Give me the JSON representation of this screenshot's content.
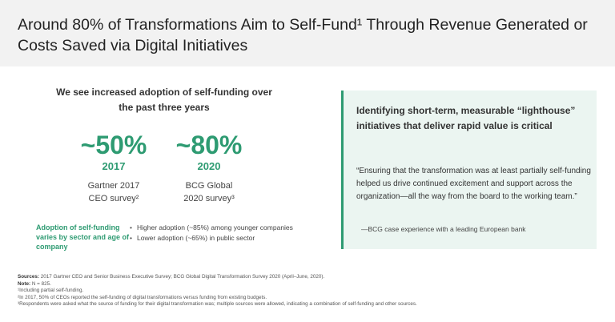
{
  "title": "Around 80% of Transformations Aim to Self-Fund¹ Through Revenue Generated or Costs Saved via Digital Initiatives",
  "left": {
    "subtitle": "We see increased adoption of self-funding over the past three years",
    "stats": [
      {
        "value": "~50%",
        "year": "2017",
        "source_line1": "Gartner 2017",
        "source_line2": "CEO survey²"
      },
      {
        "value": "~80%",
        "year": "2020",
        "source_line1": "BCG Global",
        "source_line2": "2020 survey³"
      }
    ],
    "adoption_label": "Adoption of self-funding varies by sector and age of company",
    "adoption_items": [
      "Higher adoption (~85%) among younger companies",
      "Lower adoption (~65%) in public sector"
    ]
  },
  "panel": {
    "heading": "Identifying short-term, measurable “lighthouse” initiatives that deliver rapid value is critical",
    "quote": "“Ensuring that the transformation was at least partially self-funding helped us drive continued excitement and support across the organization—all the way from the board to the working team.”",
    "attribution": "—BCG case experience with a leading European bank",
    "accent_color": "#2e9b72",
    "background_color": "#ebf5f1"
  },
  "footnotes": {
    "sources_label": "Sources:",
    "sources_text": "2017 Gartner CEO and Senior Business Executive Survey; BCG Global Digital Transformation Survey 2020 (April–June, 2020).",
    "note_label": "Note:",
    "note_text": "N = 825.",
    "fn1": "¹Including partial self-funding.",
    "fn2": "²In 2017, 50% of CEOs reported the self-funding of digital transformations versus funding from existing budgets.",
    "fn3": "³Respondents were asked what the source of funding for their digital transformation was; multiple sources were allowed, indicating a combination of self-funding and other sources."
  }
}
